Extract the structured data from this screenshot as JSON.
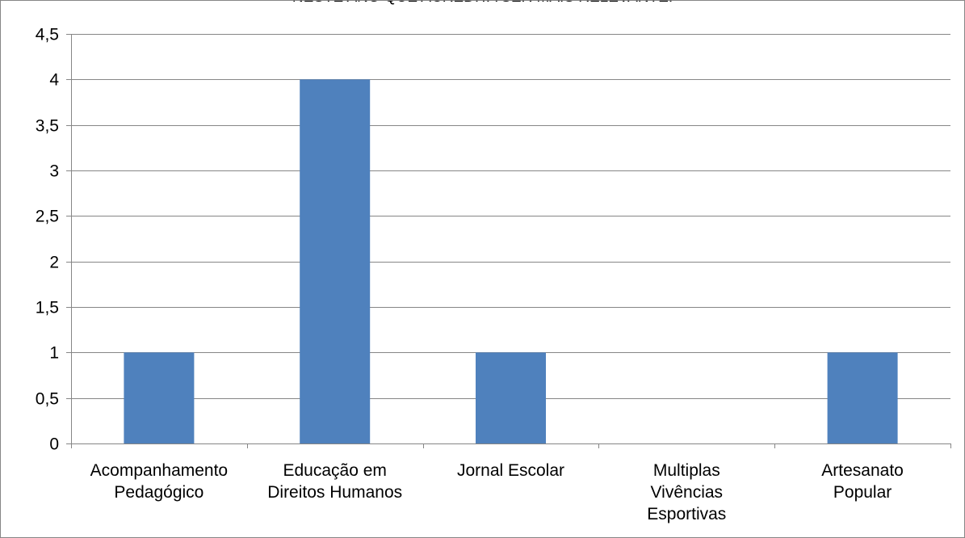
{
  "chart_data": {
    "type": "bar",
    "title": "NESTE ANO QUE ACREDITA SER MAIS RELEVANTE.",
    "xlabel": "",
    "ylabel": "",
    "categories": [
      [
        "Acompanhamento",
        "Pedagógico"
      ],
      [
        "Educação em",
        "Direitos Humanos"
      ],
      [
        "Jornal Escolar"
      ],
      [
        "Multiplas",
        "Vivências",
        "Esportivas"
      ],
      [
        "Artesanato",
        "Popular"
      ]
    ],
    "values": [
      1,
      4,
      1,
      0,
      1
    ],
    "ylim": [
      0,
      4.5
    ],
    "yticks": [
      "0",
      "0,5",
      "1",
      "1,5",
      "2",
      "2,5",
      "3",
      "3,5",
      "4",
      "4,5"
    ],
    "grid": true,
    "legend": "none",
    "colors": {
      "bar": "#4f81bd",
      "grid": "#868686",
      "axis": "#868686"
    }
  }
}
